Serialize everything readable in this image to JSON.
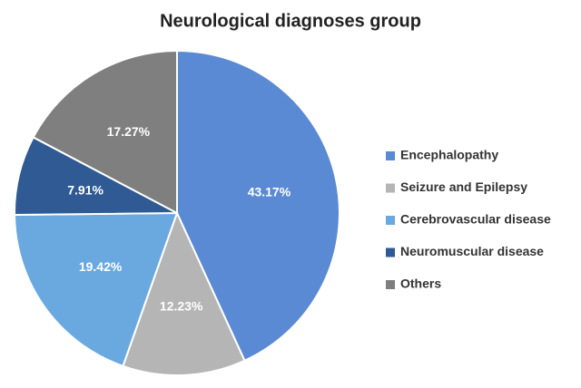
{
  "chart_data": {
    "type": "pie",
    "title": "Neurological diagnoses group",
    "categories": [
      "Encephalopathy",
      "Seizure and Epilepsy",
      "Cerebrovascular disease",
      "Neuromuscular disease",
      "Others"
    ],
    "values": [
      43.17,
      12.23,
      19.42,
      7.91,
      17.27
    ],
    "value_labels": [
      "43.17%",
      "12.23%",
      "19.42%",
      "7.91%",
      "17.27%"
    ],
    "colors": [
      "#5a8ad3",
      "#b5b5b5",
      "#6aa8e0",
      "#2f5a93",
      "#7f7f7f"
    ],
    "legend": "right"
  }
}
